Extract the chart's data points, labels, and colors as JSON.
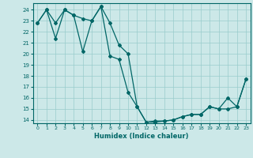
{
  "title": "",
  "xlabel": "Humidex (Indice chaleur)",
  "xlim_min": -0.5,
  "xlim_max": 23.5,
  "ylim_min": 13.7,
  "ylim_max": 24.6,
  "yticks": [
    14,
    15,
    16,
    17,
    18,
    19,
    20,
    21,
    22,
    23,
    24
  ],
  "xticks": [
    0,
    1,
    2,
    3,
    4,
    5,
    6,
    7,
    8,
    9,
    10,
    11,
    12,
    13,
    14,
    15,
    16,
    17,
    18,
    19,
    20,
    21,
    22,
    23
  ],
  "background_color": "#cce8e8",
  "grid_color": "#99cccc",
  "line_color": "#006666",
  "line1_x": [
    0,
    1,
    2,
    3,
    4,
    5,
    6,
    7,
    8,
    9,
    10,
    11,
    12,
    13,
    14,
    15,
    16,
    17,
    18,
    19,
    20,
    21,
    22,
    23
  ],
  "line1_y": [
    22.8,
    24.0,
    21.4,
    24.0,
    23.5,
    23.2,
    23.0,
    24.3,
    22.8,
    20.8,
    20.0,
    15.2,
    13.8,
    13.8,
    13.9,
    14.0,
    14.3,
    14.5,
    14.5,
    15.2,
    15.0,
    16.0,
    15.2,
    17.7
  ],
  "line2_x": [
    0,
    1,
    2,
    3,
    4,
    5,
    6,
    7,
    8,
    9,
    10,
    11,
    12,
    13,
    14,
    15,
    16,
    17,
    18,
    19,
    20,
    21,
    22,
    23
  ],
  "line2_y": [
    22.8,
    24.0,
    22.8,
    24.0,
    23.5,
    20.2,
    23.0,
    24.3,
    19.8,
    19.5,
    16.5,
    15.2,
    13.8,
    13.9,
    13.9,
    14.0,
    14.3,
    14.5,
    14.5,
    15.2,
    15.0,
    15.0,
    15.2,
    17.7
  ]
}
